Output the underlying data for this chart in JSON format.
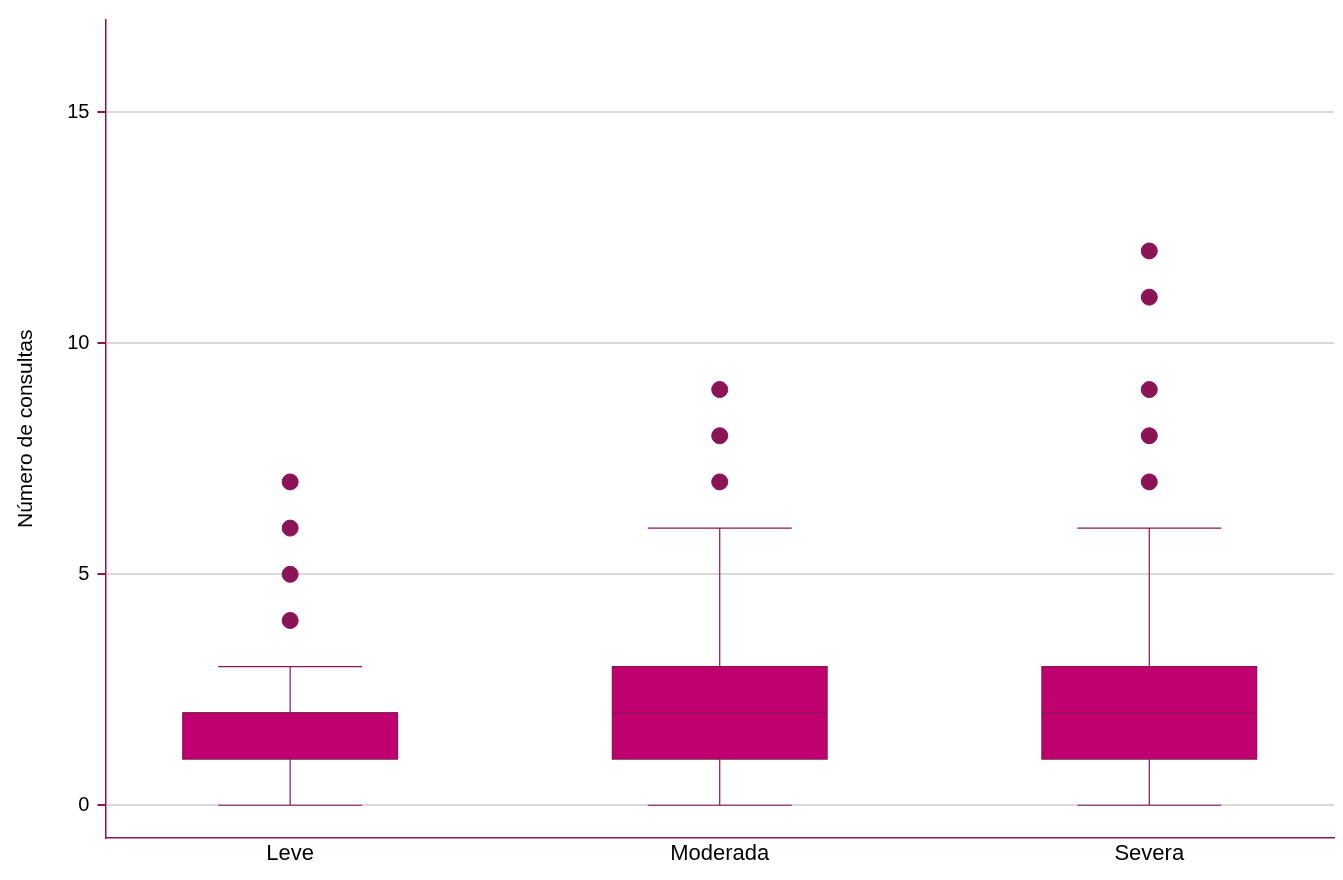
{
  "chart_data": {
    "type": "box",
    "ylabel": "Número de consultas",
    "categories": [
      "Leve",
      "Moderada",
      "Severa"
    ],
    "color": "#c0006f",
    "boxes": [
      {
        "low": 0,
        "q1": 1,
        "median": 2,
        "q3": 2,
        "high": 3,
        "outliers": [
          4,
          5,
          6,
          7
        ]
      },
      {
        "low": 0,
        "q1": 1,
        "median": 2,
        "q3": 3,
        "high": 6,
        "outliers": [
          7,
          8,
          9
        ]
      },
      {
        "low": 0,
        "q1": 1,
        "median": 2,
        "q3": 3,
        "high": 6,
        "outliers": [
          7,
          8,
          9,
          11,
          12
        ]
      }
    ],
    "ylim": [
      -0.7,
      17
    ],
    "yticks": [
      0,
      5,
      10,
      15
    ],
    "grid": "y",
    "legend": false
  }
}
